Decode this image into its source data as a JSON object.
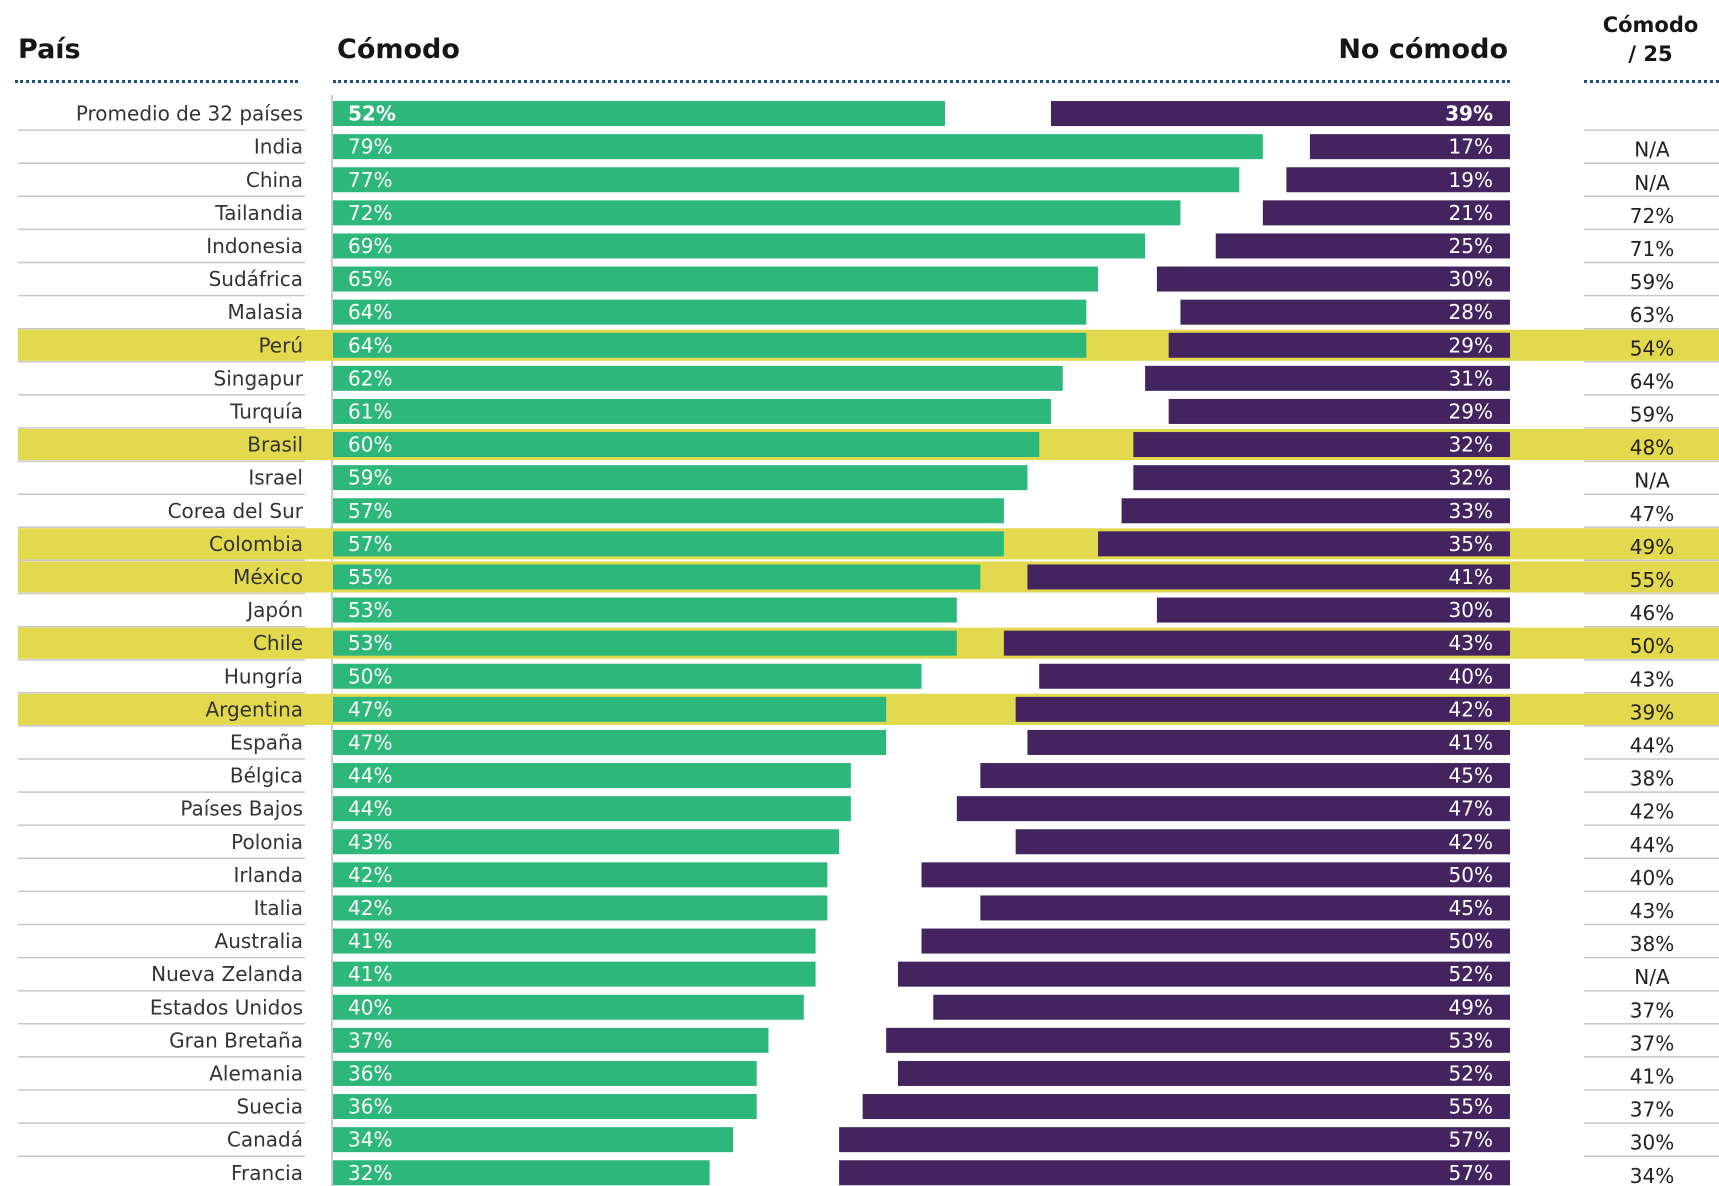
{
  "headers": {
    "country": "País",
    "comfortable": "Cómodo",
    "not_comfortable": "No cómodo",
    "score_line1": "Cómodo",
    "score_line2": "/ 25"
  },
  "colors": {
    "comfortable": "#2db77a",
    "not_comfortable": "#43245f",
    "highlight": "#e2d94f",
    "separator": "#c7c7c7",
    "header_dots": "#1f4e79"
  },
  "chart_data": {
    "type": "bar",
    "orientation": "horizontal",
    "layout": "diverging-stacked",
    "xlim": [
      0,
      100
    ],
    "categories": [
      "Promedio de 32 países",
      "India",
      "China",
      "Tailandia",
      "Indonesia",
      "Sudáfrica",
      "Malasia",
      "Perú",
      "Singapur",
      "Turquía",
      "Brasil",
      "Israel",
      "Corea del Sur",
      "Colombia",
      "México",
      "Japón",
      "Chile",
      "Hungría",
      "Argentina",
      "España",
      "Bélgica",
      "Países Bajos",
      "Polonia",
      "Irlanda",
      "Italia",
      "Australia",
      "Nueva Zelanda",
      "Estados Unidos",
      "Gran Bretaña",
      "Alemania",
      "Suecia",
      "Canadá",
      "Francia"
    ],
    "series": [
      {
        "name": "Cómodo",
        "values": [
          52,
          79,
          77,
          72,
          69,
          65,
          64,
          64,
          62,
          61,
          60,
          59,
          57,
          57,
          55,
          53,
          53,
          50,
          47,
          47,
          44,
          44,
          43,
          42,
          42,
          41,
          41,
          40,
          37,
          36,
          36,
          34,
          32
        ]
      },
      {
        "name": "No cómodo",
        "values": [
          39,
          17,
          19,
          21,
          25,
          30,
          28,
          29,
          31,
          29,
          32,
          32,
          33,
          35,
          41,
          30,
          43,
          40,
          42,
          41,
          45,
          47,
          42,
          50,
          45,
          50,
          52,
          49,
          53,
          52,
          55,
          57,
          57
        ]
      }
    ],
    "value_labels_comfortable": [
      "52%",
      "79%",
      "77%",
      "72%",
      "69%",
      "65%",
      "64%",
      "64%",
      "62%",
      "61%",
      "60%",
      "59%",
      "57%",
      "57%",
      "55%",
      "53%",
      "53%",
      "50%",
      "47%",
      "47%",
      "44%",
      "44%",
      "43%",
      "42%",
      "42%",
      "41%",
      "41%",
      "40%",
      "37%",
      "36%",
      "36%",
      "34%",
      "32%"
    ],
    "value_labels_not_comfortable": [
      "39%",
      "17%",
      "19%",
      "21%",
      "25%",
      "30%",
      "28%",
      "29%",
      "31%",
      "29%",
      "32%",
      "32%",
      "33%",
      "35%",
      "41%",
      "30%",
      "43%",
      "40%",
      "42%",
      "41%",
      "45%",
      "47%",
      "42%",
      "50%",
      "45%",
      "50%",
      "52%",
      "49%",
      "53%",
      "52%",
      "55%",
      "57%",
      "57%"
    ],
    "comfortable_2025": [
      "",
      "N/A",
      "N/A",
      "72%",
      "71%",
      "59%",
      "63%",
      "54%",
      "64%",
      "59%",
      "48%",
      "N/A",
      "47%",
      "49%",
      "55%",
      "46%",
      "50%",
      "43%",
      "39%",
      "44%",
      "38%",
      "42%",
      "44%",
      "40%",
      "43%",
      "38%",
      "N/A",
      "37%",
      "37%",
      "41%",
      "37%",
      "30%",
      "34%"
    ],
    "highlighted": [
      "Perú",
      "Brasil",
      "Colombia",
      "México",
      "Chile",
      "Argentina"
    ]
  }
}
